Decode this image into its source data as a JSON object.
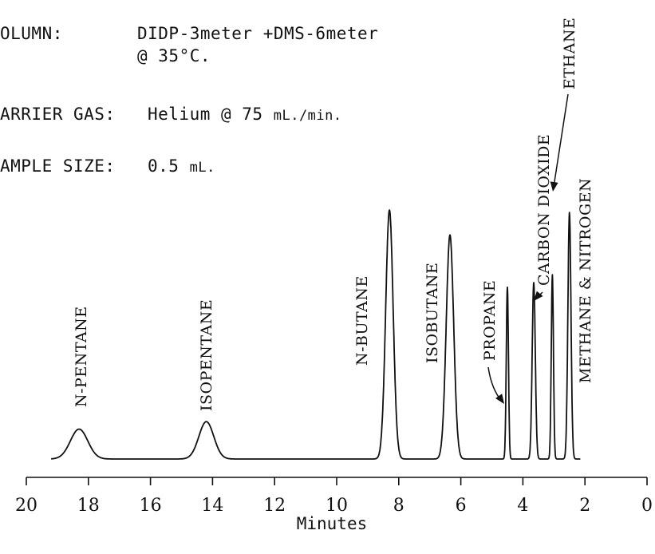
{
  "header": {
    "column_label": "OLUMN:",
    "column_value": "DIDP-3meter +DMS-6meter",
    "column_temp": "@ 35°C.",
    "carrier_label": "ARRIER GAS:",
    "carrier_value": "Helium @ 75",
    "carrier_unit": "mL./min.",
    "sample_label": "AMPLE SIZE:",
    "sample_value": "0.5",
    "sample_unit": "mL."
  },
  "chart_data": {
    "type": "line",
    "title": "",
    "xlabel": "Minutes",
    "ylabel": "",
    "xlim": [
      20,
      0
    ],
    "x_reversed": true,
    "ticks": [
      20,
      18,
      16,
      14,
      12,
      10,
      8,
      6,
      4,
      2,
      0
    ],
    "tick_labels": [
      "20",
      "18",
      "16",
      "14",
      "12",
      "10",
      "8",
      "6",
      "4",
      "2",
      "0"
    ],
    "baseline": 0,
    "ylim": [
      0,
      1.0
    ],
    "peaks": [
      {
        "name": "N-PENTANE",
        "time": 18.3,
        "height": 0.12,
        "width": 0.28
      },
      {
        "name": "ISOPENTANE",
        "time": 14.2,
        "height": 0.15,
        "width": 0.24
      },
      {
        "name": "N-BUTANE",
        "time": 8.3,
        "height": 1.0,
        "width": 0.12
      },
      {
        "name": "ISOBUTANE",
        "time": 6.35,
        "height": 0.9,
        "width": 0.12
      },
      {
        "name": "PROPANE",
        "time": 4.5,
        "height": 0.69,
        "width": 0.035
      },
      {
        "name": "CARBON DIOXIDE",
        "time": 3.65,
        "height": 0.71,
        "width": 0.05
      },
      {
        "name": "ETHANE",
        "time": 3.05,
        "height": 0.74,
        "width": 0.035
      },
      {
        "name": "METHANE & NITROGEN",
        "time": 2.5,
        "height": 0.99,
        "width": 0.05
      }
    ]
  }
}
